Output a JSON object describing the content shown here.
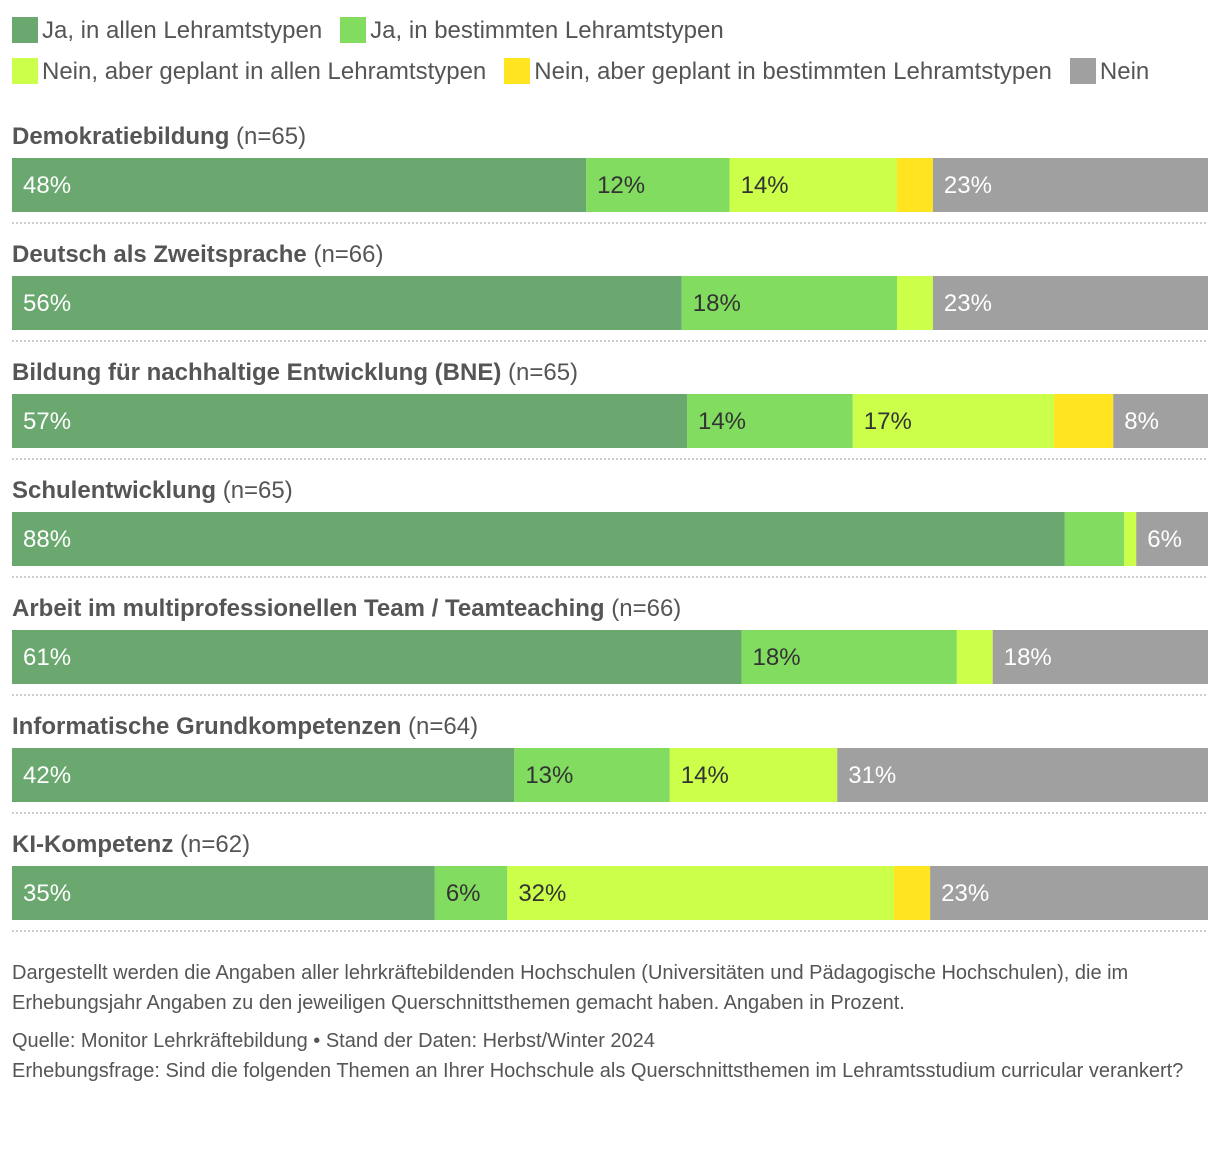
{
  "legend": [
    {
      "label": "Ja, in allen Lehramtstypen",
      "color": "#6aa86f"
    },
    {
      "label": "Ja, in bestimmten Lehramtstypen",
      "color": "#82dc60"
    },
    {
      "label": "Nein, aber geplant in allen Lehramtstypen",
      "color": "#cbff4a"
    },
    {
      "label": "Nein, aber geplant in bestimmten Lehramtstypen",
      "color": "#ffe41f"
    },
    {
      "label": "Nein",
      "color": "#a0a0a0"
    }
  ],
  "chart_data": {
    "type": "bar",
    "orientation": "horizontal",
    "stacked": true,
    "unit": "%",
    "series_names": [
      "Ja, in allen Lehramtstypen",
      "Ja, in bestimmten Lehramtstypen",
      "Nein, aber geplant in allen Lehramtstypen",
      "Nein, aber geplant in bestimmten Lehramtstypen",
      "Nein"
    ],
    "categories": [
      {
        "name": "Demokratiebildung",
        "n": "(n=65)",
        "values": [
          48,
          12,
          14,
          3,
          23
        ],
        "labels": [
          "48%",
          "12%",
          "14%",
          "",
          "23%"
        ]
      },
      {
        "name": "Deutsch als Zweitsprache",
        "n": "(n=66)",
        "values": [
          56,
          18,
          3,
          0,
          23
        ],
        "labels": [
          "56%",
          "18%",
          "",
          "",
          "23%"
        ]
      },
      {
        "name": "Bildung für nachhaltige Entwicklung (BNE)",
        "n": "(n=65)",
        "values": [
          57,
          14,
          17,
          5,
          8
        ],
        "labels": [
          "57%",
          "14%",
          "17%",
          "",
          "8%"
        ]
      },
      {
        "name": "Schulentwicklung",
        "n": "(n=65)",
        "values": [
          88,
          5,
          1,
          0,
          6
        ],
        "labels": [
          "88%",
          "",
          "",
          "",
          "6%"
        ]
      },
      {
        "name": "Arbeit im multiprofessionellen Team / Teamteaching",
        "n": "(n=66)",
        "values": [
          61,
          18,
          3,
          0,
          18
        ],
        "labels": [
          "61%",
          "18%",
          "",
          "",
          "18%"
        ]
      },
      {
        "name": "Informatische Grundkompetenzen",
        "n": "(n=64)",
        "values": [
          42,
          13,
          14,
          0,
          31
        ],
        "labels": [
          "42%",
          "13%",
          "14%",
          "",
          "31%"
        ]
      },
      {
        "name": "KI-Kompetenz",
        "n": "(n=62)",
        "values": [
          35,
          6,
          32,
          3,
          23
        ],
        "labels": [
          "35%",
          "6%",
          "32%",
          "",
          "23%"
        ]
      }
    ],
    "label_colors": [
      "#ffffff",
      "#333333",
      "#333333",
      "#333333",
      "#ffffff"
    ]
  },
  "notes": {
    "description": "Dargestellt werden die Angaben aller lehrkräftebildenden Hochschulen (Universitäten und Pädagogische Hochschulen), die im Erhebungsjahr Angaben zu den jeweiligen Querschnittsthemen gemacht haben. Angaben in Prozent.",
    "source": "Quelle: Monitor Lehrkräftebildung • Stand der Daten: Herbst/Winter 2024",
    "question": "Erhebungsfrage: Sind die folgenden Themen an Ihrer Hochschule als Querschnittsthemen im Lehramtsstudium curricular verankert?"
  }
}
